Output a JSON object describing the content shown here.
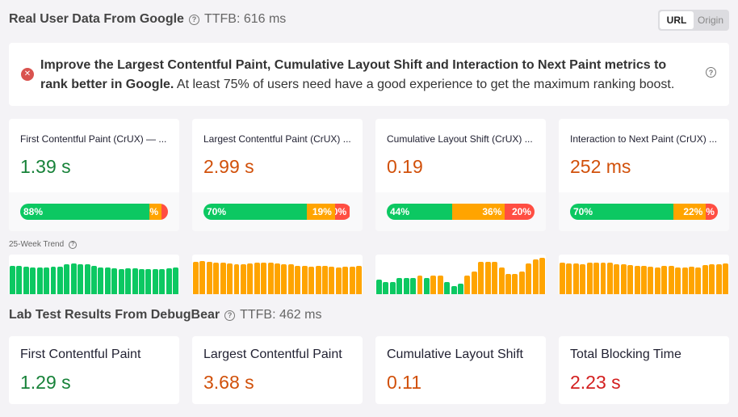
{
  "rum": {
    "title": "Real User Data From Google",
    "ttfb": "TTFB: 616 ms",
    "toggle": [
      "URL",
      "Origin"
    ],
    "toggle_selected": "URL"
  },
  "alert": {
    "bold": "Improve the Largest Contentful Paint, Cumulative Layout Shift and Interaction to Next Paint metrics to rank better in Google.",
    "text": " At least 75% of users need have a good experience to get the maximum ranking boost."
  },
  "colors": {
    "good": "#0cc862",
    "needs_improvement": "#ffa400",
    "poor": "#ff4e42",
    "good_text": "#178239",
    "ni_text": "#d1500a",
    "poor_text": "#d31f1f"
  },
  "metrics": [
    {
      "label": "First Contentful Paint (CrUX) — ...",
      "value": "1.39 s",
      "status": "good",
      "dist": [
        88,
        8,
        4
      ],
      "dist_labels": [
        "88%",
        "8%",
        ""
      ]
    },
    {
      "label": "Largest Contentful Paint (CrUX) ...",
      "value": "2.99 s",
      "status": "ni",
      "dist": [
        70,
        19,
        10
      ],
      "dist_labels": [
        "70%",
        "19%",
        "10%"
      ]
    },
    {
      "label": "Cumulative Layout Shift (CrUX) ...",
      "value": "0.19",
      "status": "ni",
      "dist": [
        44,
        36,
        20
      ],
      "dist_labels": [
        "44%",
        "36%",
        "20%"
      ]
    },
    {
      "label": "Interaction to Next Paint (CrUX) ...",
      "value": "252 ms",
      "status": "ni",
      "dist": [
        70,
        22,
        8
      ],
      "dist_labels": [
        "70%",
        "22%",
        "8%"
      ]
    }
  ],
  "trend": {
    "label": "25-Week Trend",
    "series": [
      {
        "status": [
          "g",
          "g",
          "g",
          "g",
          "g",
          "g",
          "g",
          "g",
          "g",
          "g",
          "g",
          "g",
          "g",
          "g",
          "g",
          "g",
          "g",
          "g",
          "g",
          "g",
          "g",
          "g",
          "g",
          "g",
          "g"
        ],
        "levels": [
          0.72,
          0.72,
          0.7,
          0.68,
          0.68,
          0.68,
          0.7,
          0.7,
          0.75,
          0.77,
          0.75,
          0.75,
          0.72,
          0.68,
          0.68,
          0.66,
          0.64,
          0.66,
          0.66,
          0.64,
          0.64,
          0.64,
          0.64,
          0.66,
          0.68
        ]
      },
      {
        "status": [
          "o",
          "o",
          "o",
          "o",
          "o",
          "o",
          "o",
          "o",
          "o",
          "o",
          "o",
          "o",
          "o",
          "o",
          "o",
          "o",
          "o",
          "o",
          "o",
          "o",
          "o",
          "o",
          "o",
          "o",
          "o"
        ],
        "levels": [
          0.82,
          0.84,
          0.82,
          0.8,
          0.8,
          0.78,
          0.76,
          0.76,
          0.78,
          0.8,
          0.8,
          0.8,
          0.78,
          0.75,
          0.75,
          0.72,
          0.72,
          0.7,
          0.72,
          0.72,
          0.7,
          0.68,
          0.7,
          0.7,
          0.72
        ]
      },
      {
        "status": [
          "g",
          "g",
          "g",
          "g",
          "g",
          "g",
          "o",
          "g",
          "o",
          "o",
          "g",
          "g",
          "g",
          "o",
          "o",
          "o",
          "o",
          "o",
          "o",
          "o",
          "o",
          "o",
          "o",
          "o",
          "o"
        ],
        "levels": [
          0.37,
          0.31,
          0.31,
          0.4,
          0.4,
          0.4,
          0.47,
          0.4,
          0.47,
          0.47,
          0.31,
          0.2,
          0.27,
          0.47,
          0.57,
          0.81,
          0.81,
          0.81,
          0.67,
          0.51,
          0.51,
          0.57,
          0.77,
          0.87,
          0.91
        ]
      },
      {
        "status": [
          "o",
          "o",
          "o",
          "o",
          "o",
          "o",
          "o",
          "o",
          "o",
          "o",
          "o",
          "o",
          "o",
          "o",
          "o",
          "o",
          "o",
          "o",
          "o",
          "o",
          "o",
          "o",
          "o",
          "o",
          "o"
        ],
        "levels": [
          0.8,
          0.78,
          0.78,
          0.76,
          0.8,
          0.8,
          0.8,
          0.8,
          0.76,
          0.76,
          0.74,
          0.72,
          0.72,
          0.7,
          0.68,
          0.72,
          0.72,
          0.68,
          0.68,
          0.7,
          0.68,
          0.74,
          0.76,
          0.76,
          0.78
        ]
      }
    ]
  },
  "lab": {
    "title": "Lab Test Results From DebugBear",
    "ttfb": "TTFB: 462 ms",
    "metrics": [
      {
        "label": "First Contentful Paint",
        "value": "1.29 s",
        "status": "good"
      },
      {
        "label": "Largest Contentful Paint",
        "value": "3.68 s",
        "status": "ni"
      },
      {
        "label": "Cumulative Layout Shift",
        "value": "0.11",
        "status": "ni"
      },
      {
        "label": "Total Blocking Time",
        "value": "2.23 s",
        "status": "poor"
      }
    ]
  }
}
